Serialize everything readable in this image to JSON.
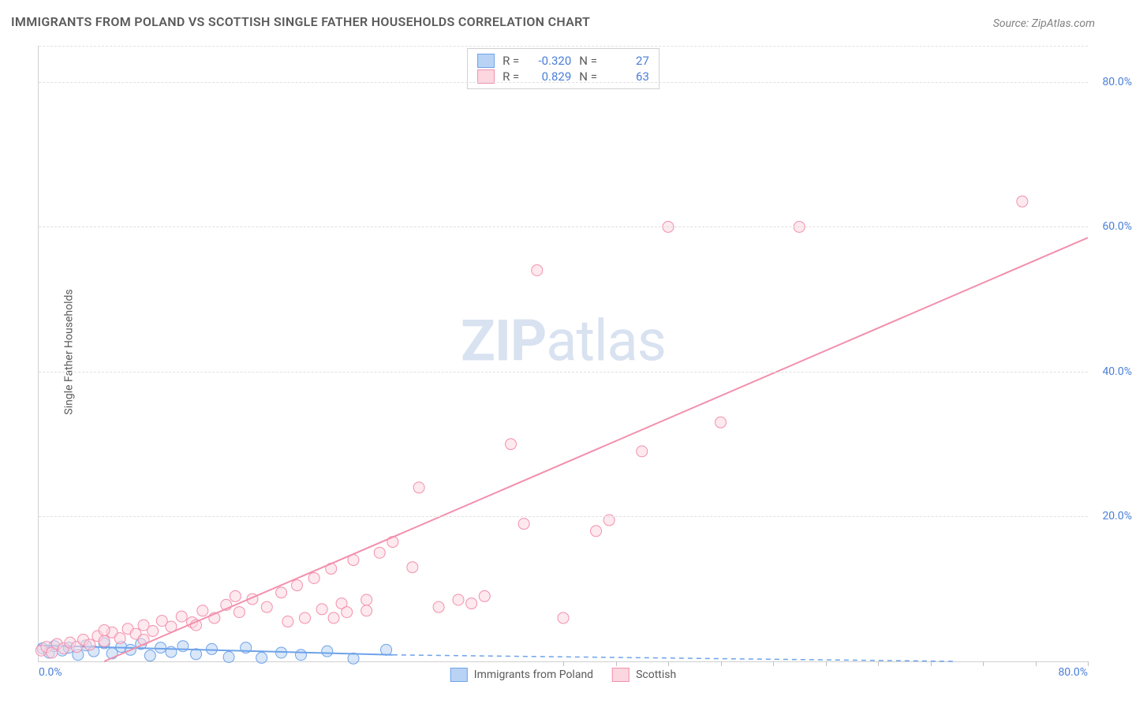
{
  "title": "IMMIGRANTS FROM POLAND VS SCOTTISH SINGLE FATHER HOUSEHOLDS CORRELATION CHART",
  "source": "Source: ZipAtlas.com",
  "watermark_pre": "ZIP",
  "watermark_post": "atlas",
  "ylabel": "Single Father Households",
  "legend_top": {
    "rows": [
      {
        "swatch_fill": "#b9d3f4",
        "swatch_stroke": "#6ea3e8",
        "r_label": "R =",
        "r_value": "-0.320",
        "n_label": "N =",
        "n_value": "27"
      },
      {
        "swatch_fill": "#fcd7e0",
        "swatch_stroke": "#f290ad",
        "r_label": "R =",
        "r_value": "0.829",
        "n_label": "N =",
        "n_value": "63"
      }
    ]
  },
  "legend_bottom": {
    "items": [
      {
        "swatch_fill": "#b9d3f4",
        "swatch_stroke": "#6ea3e8",
        "label": "Immigrants from Poland"
      },
      {
        "swatch_fill": "#fcd7e0",
        "swatch_stroke": "#f290ad",
        "label": "Scottish"
      }
    ]
  },
  "chart": {
    "type": "scatter",
    "xlim": [
      0,
      80
    ],
    "ylim": [
      0,
      85
    ],
    "x_ticks_label": {
      "left": "0.0%",
      "right": "80.0%"
    },
    "y_ticks": [
      {
        "v": 20,
        "label": "20.0%"
      },
      {
        "v": 40,
        "label": "40.0%"
      },
      {
        "v": 60,
        "label": "60.0%"
      },
      {
        "v": 80,
        "label": "80.0%"
      }
    ],
    "x_minor_ticks": [
      40,
      44,
      48,
      52,
      56,
      60,
      64,
      68,
      72,
      76,
      80
    ],
    "grid_color": "#e0e0e0",
    "axis_color": "#d0d0d0",
    "tick_label_color": "#4a7fd8",
    "background_color": "#ffffff",
    "marker_radius": 7,
    "marker_opacity": 0.55,
    "series": [
      {
        "name": "Immigrants from Poland",
        "fill": "#b9d3f4",
        "stroke": "#6ea3e8",
        "points": [
          [
            0.3,
            1.8
          ],
          [
            0.8,
            1.2
          ],
          [
            1.2,
            2.1
          ],
          [
            1.8,
            1.5
          ],
          [
            2.3,
            1.9
          ],
          [
            3.0,
            0.9
          ],
          [
            3.6,
            2.2
          ],
          [
            4.2,
            1.4
          ],
          [
            5.0,
            2.5
          ],
          [
            5.6,
            1.1
          ],
          [
            6.3,
            2.0
          ],
          [
            7.0,
            1.6
          ],
          [
            7.8,
            2.4
          ],
          [
            8.5,
            0.8
          ],
          [
            9.3,
            1.9
          ],
          [
            10.1,
            1.3
          ],
          [
            11.0,
            2.1
          ],
          [
            12.0,
            1.0
          ],
          [
            13.2,
            1.7
          ],
          [
            14.5,
            0.6
          ],
          [
            15.8,
            1.9
          ],
          [
            17.0,
            0.5
          ],
          [
            18.5,
            1.2
          ],
          [
            20.0,
            0.9
          ],
          [
            22.0,
            1.4
          ],
          [
            24.0,
            0.4
          ],
          [
            26.5,
            1.6
          ]
        ],
        "trend": {
          "x1": 0,
          "y1": 2.2,
          "x2": 27,
          "y2": 0.9,
          "solid": true,
          "ext_x1": 27,
          "ext_y1": 0.9,
          "ext_x2": 70,
          "ext_y2": 0.0
        }
      },
      {
        "name": "Scottish",
        "fill": "#fcd7e0",
        "stroke": "#f290ad",
        "points": [
          [
            0.2,
            1.5
          ],
          [
            0.6,
            2.0
          ],
          [
            1.0,
            1.2
          ],
          [
            1.4,
            2.4
          ],
          [
            1.9,
            1.8
          ],
          [
            2.4,
            2.6
          ],
          [
            2.9,
            2.0
          ],
          [
            3.4,
            3.0
          ],
          [
            3.9,
            2.3
          ],
          [
            4.5,
            3.5
          ],
          [
            5.0,
            2.8
          ],
          [
            5.6,
            4.0
          ],
          [
            6.2,
            3.2
          ],
          [
            6.8,
            4.5
          ],
          [
            7.4,
            3.8
          ],
          [
            8.0,
            5.0
          ],
          [
            8.7,
            4.2
          ],
          [
            9.4,
            5.6
          ],
          [
            10.1,
            4.8
          ],
          [
            10.9,
            6.2
          ],
          [
            11.7,
            5.4
          ],
          [
            12.5,
            7.0
          ],
          [
            13.4,
            6.0
          ],
          [
            14.3,
            7.8
          ],
          [
            15.3,
            6.8
          ],
          [
            16.3,
            8.6
          ],
          [
            17.4,
            7.5
          ],
          [
            18.5,
            9.5
          ],
          [
            19.0,
            5.5
          ],
          [
            19.7,
            10.5
          ],
          [
            20.3,
            6.0
          ],
          [
            21.0,
            11.5
          ],
          [
            21.6,
            7.2
          ],
          [
            22.3,
            12.8
          ],
          [
            23.1,
            8.0
          ],
          [
            24.0,
            14.0
          ],
          [
            25.0,
            8.5
          ],
          [
            26.0,
            15.0
          ],
          [
            22.5,
            6.0
          ],
          [
            23.5,
            6.8
          ],
          [
            25.0,
            7.0
          ],
          [
            27.0,
            16.5
          ],
          [
            28.5,
            13.0
          ],
          [
            29.0,
            24.0
          ],
          [
            30.5,
            7.5
          ],
          [
            32.0,
            8.5
          ],
          [
            33.0,
            8.0
          ],
          [
            34.0,
            9.0
          ],
          [
            36.0,
            30.0
          ],
          [
            37.0,
            19.0
          ],
          [
            38.0,
            54.0
          ],
          [
            40.0,
            6.0
          ],
          [
            42.5,
            18.0
          ],
          [
            43.5,
            19.5
          ],
          [
            46.0,
            29.0
          ],
          [
            48.0,
            60.0
          ],
          [
            52.0,
            33.0
          ],
          [
            58.0,
            60.0
          ],
          [
            75.0,
            63.5
          ],
          [
            8.0,
            3.0
          ],
          [
            5.0,
            4.3
          ],
          [
            12.0,
            5.0
          ],
          [
            15.0,
            9.0
          ]
        ],
        "trend": {
          "x1": 5,
          "y1": 0,
          "x2": 80,
          "y2": 58.5,
          "solid": true
        }
      }
    ]
  }
}
